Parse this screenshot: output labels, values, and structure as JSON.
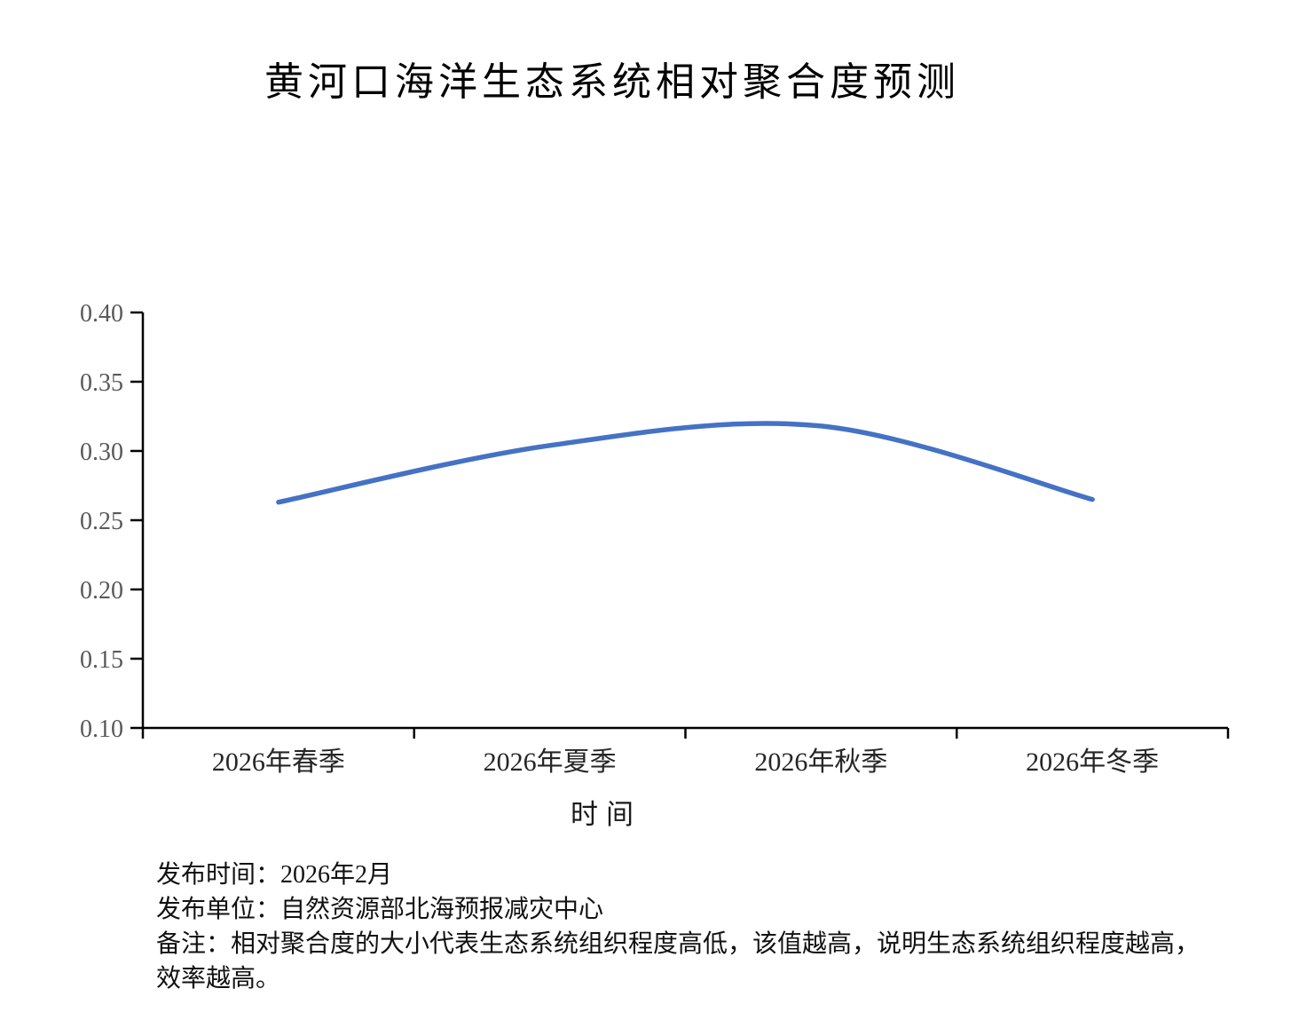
{
  "chart_data": {
    "type": "line",
    "title": "黄河口海洋生态系统相对聚合度预测",
    "categories": [
      "2026年春季",
      "2026年夏季",
      "2026年秋季",
      "2026年冬季"
    ],
    "values": [
      0.263,
      0.304,
      0.318,
      0.265
    ],
    "xlabel": "时间",
    "ylabel": "",
    "ylim": [
      0.1,
      0.4
    ],
    "y_ticks": [
      0.4,
      0.35,
      0.3,
      0.25,
      0.2,
      0.15,
      0.1
    ],
    "y_tick_labels": [
      "0.40",
      "0.35",
      "0.30",
      "0.25",
      "0.20",
      "0.15",
      "0.10"
    ],
    "grid": false,
    "legend": false,
    "smooth": true,
    "markers": false,
    "line_color": "#4472C4",
    "axis_color": "#000000",
    "y_tick_label_color": "#595959",
    "x_tick_label_color": "#262626"
  },
  "footer": {
    "lines": [
      "发布时间：2026年2月",
      "发布单位：自然资源部北海预报减灾中心",
      "备注：相对聚合度的大小代表生态系统组织程度高低，该值越高，说明生态系统组织程度越高，",
      "效率越高。"
    ]
  }
}
